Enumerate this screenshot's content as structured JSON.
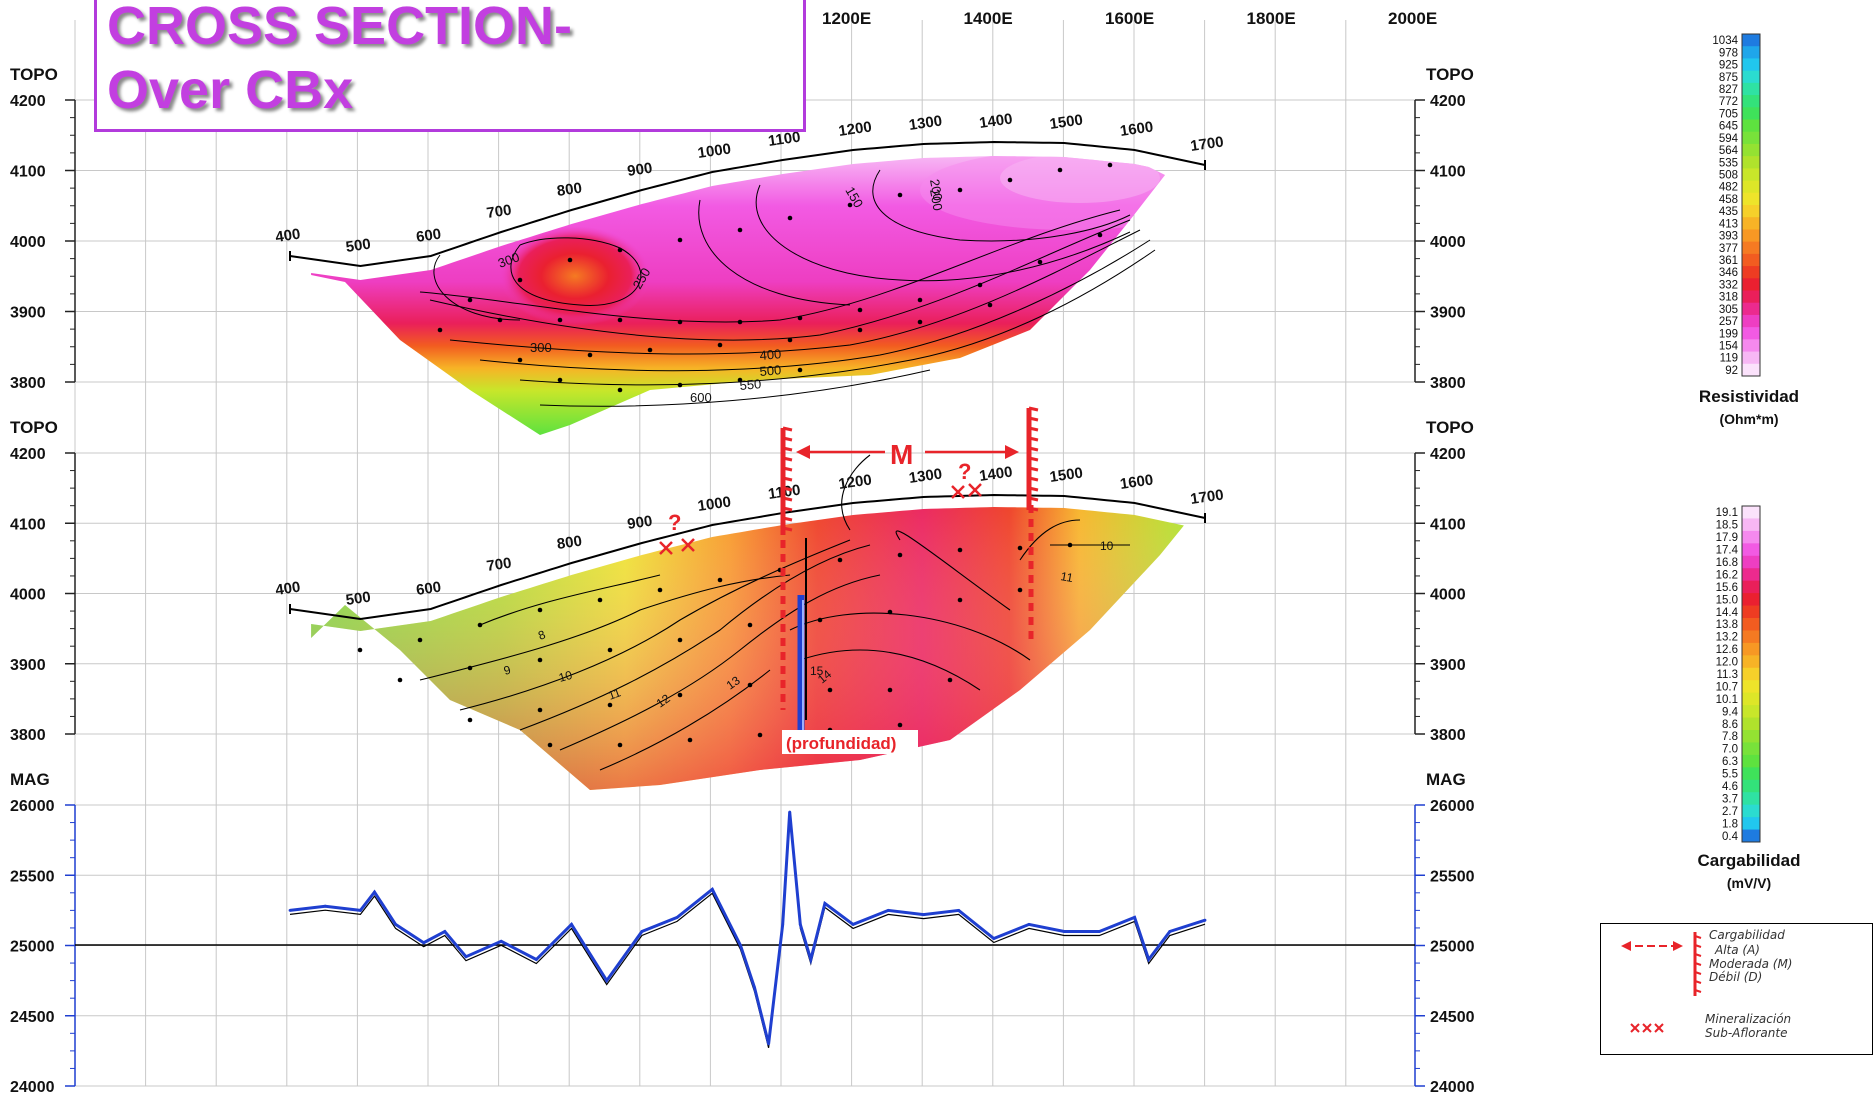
{
  "title": {
    "line1": "CROSS SECTION-",
    "line2": "Over CBx"
  },
  "x_axis_top": [
    "1200E",
    "1400E",
    "1600E",
    "1800E",
    "2000E"
  ],
  "panel_labels": {
    "topo": "TOPO",
    "mag": "MAG"
  },
  "profile": {
    "section_length": 1700,
    "top_labels": [
      "400",
      "500",
      "600",
      "700",
      "800",
      "900",
      "1000",
      "1100",
      "1200",
      "1300",
      "1400",
      "1500",
      "1600",
      "1700"
    ],
    "mid_labels": [
      "400",
      "500",
      "600",
      "700",
      "800",
      "900",
      "1000",
      "1100",
      "1200",
      "1300",
      "1400",
      "1500",
      "1600",
      "1700"
    ]
  },
  "annotations": {
    "m_label": "M",
    "question": "?",
    "depth_label": "(profundidad)"
  },
  "resistivity_legend": {
    "title": "Resistividad",
    "unit": "(Ohm*m)",
    "values": [
      "1034",
      "978",
      "925",
      "875",
      "827",
      "772",
      "705",
      "645",
      "594",
      "564",
      "535",
      "508",
      "482",
      "458",
      "435",
      "413",
      "393",
      "377",
      "361",
      "346",
      "332",
      "318",
      "305",
      "257",
      "199",
      "154",
      "119",
      "92"
    ],
    "colors": [
      "#1e7be0",
      "#1fa6ea",
      "#21c7ee",
      "#2bdcd0",
      "#2fe2a3",
      "#33e27a",
      "#3fe25a",
      "#5ee23f",
      "#78e23a",
      "#94e232",
      "#b0e22c",
      "#c8e62a",
      "#dde628",
      "#eee42a",
      "#f6d02a",
      "#f7b326",
      "#f79824",
      "#f57a22",
      "#f25c20",
      "#ee3c22",
      "#ea2030",
      "#ea1f5a",
      "#ec2a8e",
      "#ee3ec2",
      "#f25ae3",
      "#f589ee",
      "#f7b7f4",
      "#fbe2fb"
    ]
  },
  "chargeability_legend": {
    "title": "Cargabilidad",
    "unit": "(mV/V)",
    "values": [
      "19.1",
      "18.5",
      "17.9",
      "17.4",
      "16.8",
      "16.2",
      "15.6",
      "15.0",
      "14.4",
      "13.8",
      "13.2",
      "12.6",
      "12.0",
      "11.3",
      "10.7",
      "10.1",
      "9.4",
      "8.6",
      "7.8",
      "7.0",
      "6.3",
      "5.5",
      "4.6",
      "3.7",
      "2.7",
      "1.8",
      "0.4"
    ],
    "colors": [
      "#fbe2fb",
      "#f7b7f4",
      "#f589ee",
      "#f25ae3",
      "#ee3ec2",
      "#ec2a8e",
      "#ea1f5a",
      "#ea2030",
      "#ee3c22",
      "#f25c20",
      "#f57a22",
      "#f79824",
      "#f7b326",
      "#f6d02a",
      "#eee42a",
      "#dde628",
      "#c8e62a",
      "#b0e22c",
      "#94e232",
      "#78e23a",
      "#5ee23f",
      "#3fe25a",
      "#33e27a",
      "#2fe2a3",
      "#2bdcd0",
      "#21c7ee",
      "#1e7be0"
    ]
  },
  "symbol_legend": {
    "charge_title": "Cargabilidad",
    "charge_levels": [
      "Alta (A)",
      "Moderada (M)",
      "Débil (D)"
    ],
    "mineral_symbol": "xxx",
    "mineral_line1": "Mineralización",
    "mineral_line2": "Sub-Aflorante"
  },
  "chart_data": [
    {
      "type": "heatmap",
      "name_printed": "Resistividad",
      "ylabel": "TOPO",
      "ylim": [
        3800,
        4200
      ],
      "y_ticks": [
        4200,
        4100,
        4000,
        3900,
        3800
      ],
      "contour_labels": [
        "150",
        "200",
        "200",
        "250",
        "300",
        "300",
        "400",
        "500",
        "550",
        "600"
      ]
    },
    {
      "type": "heatmap",
      "name_printed": "Cargabilidad",
      "ylabel": "TOPO",
      "ylim": [
        3800,
        4200
      ],
      "y_ticks": [
        4200,
        4100,
        4000,
        3900,
        3800
      ],
      "contour_labels": [
        "8",
        "9",
        "10",
        "11",
        "12",
        "13",
        "14",
        "15",
        "10",
        "11"
      ]
    },
    {
      "type": "line",
      "ylabel": "MAG",
      "ylim": [
        24000,
        26000
      ],
      "y_ticks": [
        26000,
        25500,
        25000,
        24500,
        24000
      ],
      "xlim": [
        400,
        1700
      ],
      "x": [
        400,
        450,
        500,
        520,
        550,
        590,
        620,
        650,
        700,
        750,
        800,
        850,
        900,
        950,
        1000,
        1040,
        1060,
        1080,
        1100,
        1110,
        1125,
        1140,
        1160,
        1200,
        1250,
        1300,
        1350,
        1400,
        1450,
        1500,
        1550,
        1600,
        1620,
        1650,
        1700
      ],
      "series": [
        {
          "values": [
            25250,
            25280,
            25250,
            25380,
            25150,
            25020,
            25100,
            24920,
            25030,
            24900,
            25150,
            24750,
            25100,
            25200,
            25400,
            25000,
            24700,
            24300,
            25150,
            25950,
            25150,
            24900,
            25300,
            25150,
            25250,
            25220,
            25250,
            25050,
            25150,
            25100,
            25100,
            25200,
            24900,
            25100,
            25180
          ]
        }
      ]
    }
  ]
}
